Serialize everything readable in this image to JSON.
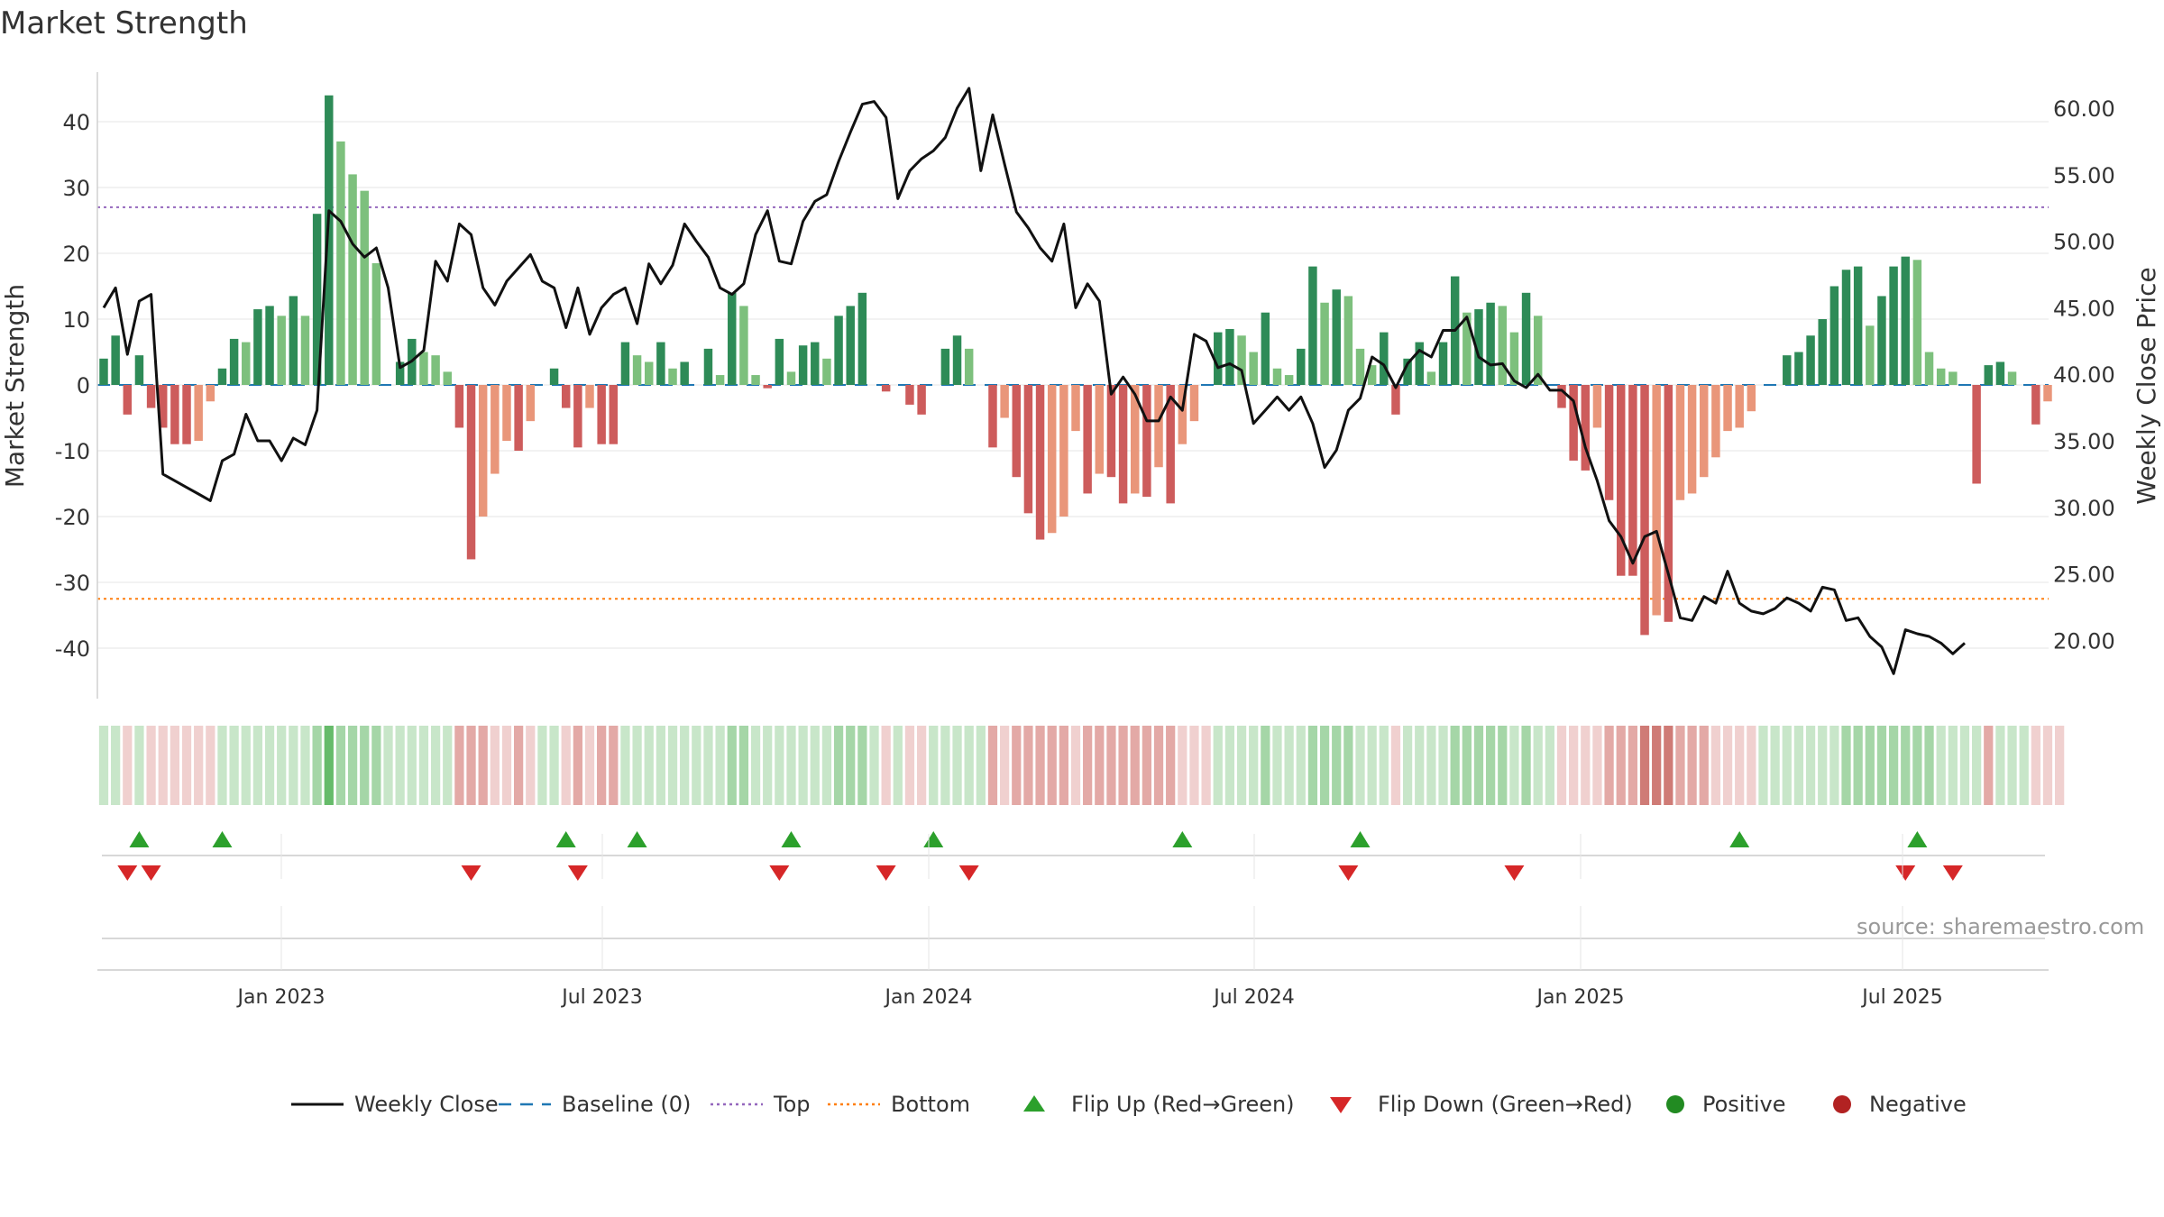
{
  "title": "Market Strength",
  "source": "source: sharemaestro.com",
  "colors": {
    "price_line": "#111111",
    "baseline": "#1f77b4",
    "top_line": "#9467bd",
    "bottom_line": "#ff7f0e",
    "strong_green": "#2e8b57",
    "light_green": "#7dc07d",
    "strong_red": "#cd5c5c",
    "light_red": "#e9967a",
    "flip_up": "#2ca02c",
    "flip_down": "#d62728",
    "positive_dot": "#228b22",
    "negative_dot": "#b22222"
  },
  "chart_data": {
    "type": "bar",
    "ylabel_left": "Market Strength",
    "ylabel_right": "Weekly Close Price",
    "left_ticks": [
      40,
      30,
      20,
      10,
      0,
      -10,
      -20,
      -30,
      -40
    ],
    "right_ticks": [
      "60.00",
      "55.00",
      "50.00",
      "45.00",
      "40.00",
      "35.00",
      "30.00",
      "25.00",
      "20.00"
    ],
    "x_ticks": [
      "Jan 2023",
      "Jul 2023",
      "Jan 2024",
      "Jul 2024",
      "Jan 2025",
      "Jul 2025"
    ],
    "ylim_left": [
      -48,
      48
    ],
    "ylim_right": [
      15.5,
      62.5
    ],
    "top_threshold": 27,
    "bottom_threshold": -32.5,
    "baseline": 0,
    "strength": [
      4,
      7.5,
      -4.5,
      4.5,
      -3.5,
      -6.5,
      -9,
      -9,
      -8.5,
      -2.5,
      2.5,
      7,
      6.5,
      11.5,
      12,
      10.5,
      13.5,
      10.5,
      26,
      44,
      37,
      32,
      29.5,
      18.5,
      0,
      3.5,
      7,
      5,
      4.5,
      2,
      -6.5,
      -26.5,
      -20,
      -13.5,
      -8.5,
      -10,
      -5.5,
      0,
      2.5,
      -3.5,
      -9.5,
      -3.5,
      -9,
      -9,
      6.5,
      4.5,
      3.5,
      6.5,
      2.5,
      3.5,
      0,
      5.5,
      1.5,
      14,
      12,
      1.5,
      -0.5,
      7,
      2,
      6,
      6.5,
      4,
      10.5,
      12,
      14,
      0,
      -1,
      0,
      -3,
      -4.5,
      0,
      5.5,
      7.5,
      5.5,
      0,
      -9.5,
      -5,
      -14,
      -19.5,
      -23.5,
      -22.5,
      -20,
      -7,
      -16.5,
      -13.5,
      -14,
      -18,
      -16.5,
      -17,
      -12.5,
      -18,
      -9,
      -5.5,
      0,
      8,
      8.5,
      7.5,
      5,
      11,
      2.5,
      1.5,
      5.5,
      18,
      12.5,
      14.5,
      13.5,
      5.5,
      3,
      8,
      -4.5,
      4,
      6.5,
      2,
      6.5,
      16.5,
      11,
      11.5,
      12.5,
      12,
      8,
      14,
      10.5,
      0,
      -3.5,
      -11.5,
      -13,
      -6.5,
      -17.5,
      -29,
      -29,
      -38,
      -35,
      -36,
      -17.5,
      -16.5,
      -14,
      -11,
      -7,
      -6.5,
      -4,
      0,
      0,
      4.5,
      5,
      7.5,
      10,
      15,
      17.5,
      18,
      9,
      13.5,
      18,
      19.5,
      19,
      5,
      2.5,
      2,
      0,
      -15,
      3,
      3.5,
      2,
      0,
      -6,
      -2.5
    ],
    "price": [
      45,
      46.5,
      41.5,
      45.5,
      46,
      32.5,
      32,
      31.5,
      31,
      30.5,
      33.5,
      34,
      37,
      35,
      35,
      33.5,
      35.2,
      34.7,
      37.3,
      52.3,
      51.5,
      49.8,
      48.8,
      49.5,
      46.5,
      40.5,
      41,
      41.8,
      48.5,
      47,
      51.3,
      50.5,
      46.5,
      45.2,
      47,
      48,
      49,
      47,
      46.5,
      43.5,
      46.5,
      43,
      45,
      46,
      46.5,
      43.8,
      48.3,
      46.8,
      48.2,
      51.3,
      50,
      48.8,
      46.5,
      46,
      46.8,
      50.5,
      52.3,
      48.5,
      48.3,
      51.5,
      53,
      53.5,
      56,
      58.2,
      60.3,
      60.5,
      59.3,
      53.2,
      55.3,
      56.2,
      56.8,
      57.8,
      60,
      61.5,
      55.3,
      59.5,
      55.8,
      52.2,
      51,
      49.5,
      48.5,
      51.3,
      45,
      46.8,
      45.5,
      38.5,
      39.8,
      38.5,
      36.5,
      36.5,
      38.3,
      37.3,
      43,
      42.5,
      40.5,
      40.8,
      40.3,
      36.3,
      37.3,
      38.3,
      37.3,
      38.3,
      36.3,
      33,
      34.3,
      37.3,
      38.2,
      41.3,
      40.7,
      39,
      40.8,
      41.8,
      41.3,
      43.3,
      43.3,
      44.3,
      41.3,
      40.7,
      40.8,
      39.5,
      39,
      40,
      38.8,
      38.8,
      38,
      34.5,
      32,
      29,
      27.8,
      25.8,
      27.8,
      28.2,
      25,
      21.7,
      21.5,
      23.3,
      22.8,
      25.2,
      22.8,
      22.2,
      22,
      22.4,
      23.2,
      22.8,
      22.2,
      24,
      23.8,
      21.5,
      21.7,
      20.3,
      19.5,
      17.5,
      20.8,
      20.5,
      20.3,
      19.8,
      19,
      19.8
    ],
    "strip_levels": [
      1,
      1,
      -1,
      1,
      -1,
      -1,
      -1,
      -1,
      -1,
      -1,
      1,
      1,
      1,
      1,
      1,
      1,
      1,
      1,
      2,
      3,
      2,
      2,
      2,
      2,
      1,
      1,
      1,
      1,
      1,
      1,
      -2,
      -2,
      -2,
      -1,
      -1,
      -2,
      -1,
      1,
      1,
      -1,
      -2,
      -1,
      -2,
      -2,
      1,
      1,
      1,
      1,
      1,
      1,
      1,
      1,
      1,
      2,
      2,
      1,
      1,
      1,
      1,
      1,
      1,
      1,
      2,
      2,
      2,
      1,
      -1,
      1,
      -1,
      -1,
      1,
      1,
      1,
      1,
      1,
      -2,
      -1,
      -2,
      -2,
      -2,
      -2,
      -2,
      -1,
      -2,
      -2,
      -2,
      -2,
      -2,
      -2,
      -2,
      -2,
      -1,
      -1,
      -1,
      1,
      1,
      1,
      1,
      2,
      1,
      1,
      1,
      2,
      2,
      2,
      2,
      1,
      1,
      1,
      -1,
      1,
      1,
      1,
      1,
      2,
      2,
      2,
      2,
      2,
      1,
      2,
      1,
      1,
      -1,
      -1,
      -1,
      -1,
      -2,
      -2,
      -2,
      -3,
      -3,
      -3,
      -2,
      -2,
      -2,
      -1,
      -1,
      -1,
      -1,
      1,
      1,
      1,
      1,
      1,
      1,
      1,
      2,
      2,
      2,
      2,
      2,
      2,
      2,
      2,
      1,
      1,
      1,
      1,
      -2,
      1,
      1,
      1,
      -1,
      -1,
      -1
    ],
    "flip_up_index": [
      3,
      10,
      39,
      45,
      58,
      70,
      91,
      106,
      138,
      153
    ],
    "flip_down_index": [
      2,
      4,
      31,
      40,
      57,
      66,
      73,
      105,
      119,
      152,
      156
    ]
  },
  "legend": [
    {
      "label": "Weekly Close",
      "symbol": "solid-line"
    },
    {
      "label": "Baseline (0)",
      "symbol": "dash-line"
    },
    {
      "label": "Top",
      "symbol": "dot-line-purple"
    },
    {
      "label": "Bottom",
      "symbol": "dot-line-orange"
    },
    {
      "label": "Flip Up (Red→Green)",
      "symbol": "up-triangle"
    },
    {
      "label": "Flip Down (Green→Red)",
      "symbol": "down-triangle"
    },
    {
      "label": "Positive",
      "symbol": "green-dot"
    },
    {
      "label": "Negative",
      "symbol": "red-dot"
    }
  ]
}
